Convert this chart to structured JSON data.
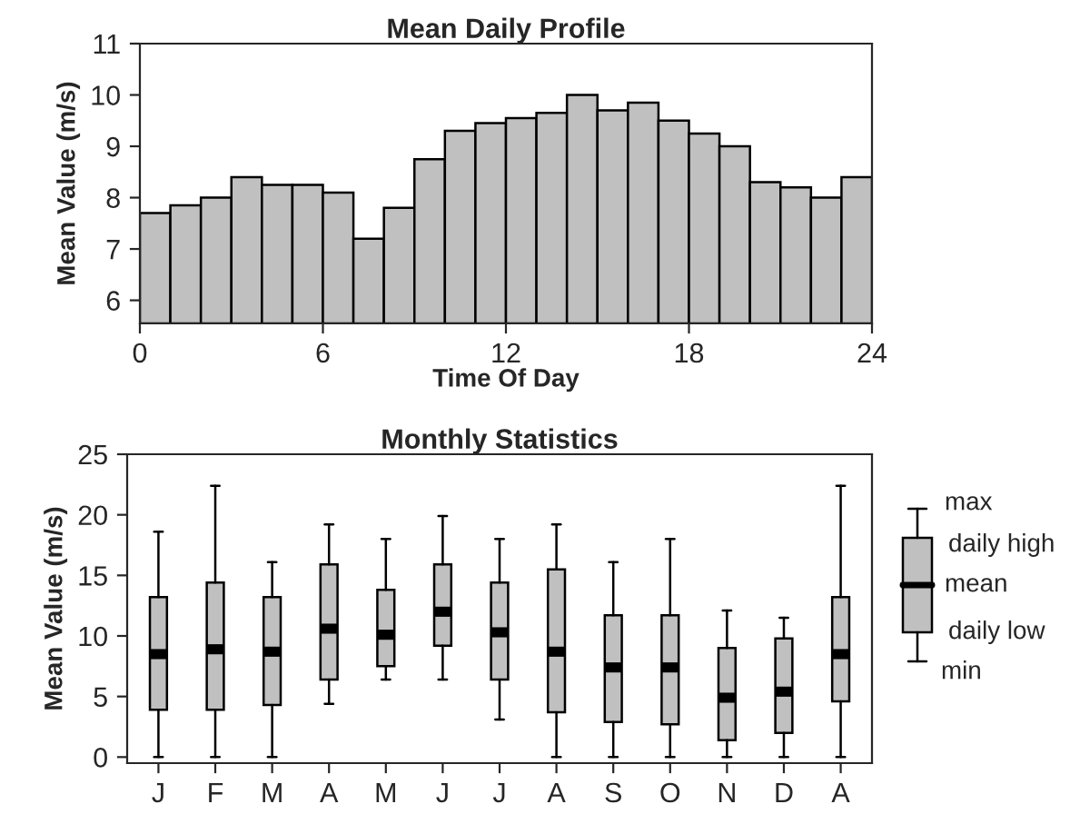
{
  "chart_data": [
    {
      "type": "histogram",
      "title": "Mean Daily Profile",
      "xlabel": "Time Of Day",
      "ylabel": "Mean Value (m/s)",
      "color": "#c0c0c0",
      "bins": [
        0,
        1,
        2,
        3,
        4,
        5,
        6,
        7,
        8,
        9,
        10,
        11,
        12,
        13,
        14,
        15,
        16,
        17,
        18,
        19,
        20,
        21,
        22,
        23,
        24
      ],
      "values": [
        7.7,
        7.85,
        8.0,
        8.4,
        8.25,
        8.25,
        8.1,
        7.2,
        7.8,
        8.75,
        9.3,
        9.45,
        9.55,
        9.65,
        10.0,
        9.7,
        9.85,
        9.5,
        9.25,
        9.0,
        8.3,
        8.2,
        8.0,
        8.4
      ],
      "xlim": [
        0,
        24
      ],
      "xticks": [
        0,
        6,
        12,
        18,
        24
      ],
      "ylim": [
        5.55,
        11
      ],
      "yticks": [
        6,
        7,
        8,
        9,
        10,
        11
      ],
      "grid": false
    },
    {
      "type": "box",
      "title": "Monthly Statistics",
      "ylabel": "Mean Value (m/s)",
      "color": "#c0c0c0",
      "categories": [
        "J",
        "F",
        "M",
        "A",
        "M",
        "J",
        "J",
        "A",
        "S",
        "O",
        "N",
        "D",
        "A"
      ],
      "boxes": [
        {
          "low": 0,
          "q1": 3.9,
          "median": 8.5,
          "q3": 13.2,
          "high": 18.6
        },
        {
          "low": 0,
          "q1": 3.9,
          "median": 8.9,
          "q3": 14.4,
          "high": 22.4
        },
        {
          "low": 0,
          "q1": 4.3,
          "median": 8.7,
          "q3": 13.2,
          "high": 16.1
        },
        {
          "low": 4.4,
          "q1": 6.4,
          "median": 10.6,
          "q3": 15.9,
          "high": 19.2
        },
        {
          "low": 6.4,
          "q1": 7.5,
          "median": 10.1,
          "q3": 13.8,
          "high": 18.0
        },
        {
          "low": 6.4,
          "q1": 9.2,
          "median": 12.0,
          "q3": 15.9,
          "high": 19.9
        },
        {
          "low": 3.1,
          "q1": 6.4,
          "median": 10.3,
          "q3": 14.4,
          "high": 18.0
        },
        {
          "low": 0,
          "q1": 3.7,
          "median": 8.7,
          "q3": 15.5,
          "high": 19.2
        },
        {
          "low": 0,
          "q1": 2.9,
          "median": 7.4,
          "q3": 11.7,
          "high": 16.1
        },
        {
          "low": 0,
          "q1": 2.7,
          "median": 7.4,
          "q3": 11.7,
          "high": 18.0
        },
        {
          "low": 0,
          "q1": 1.4,
          "median": 4.9,
          "q3": 9.0,
          "high": 12.1
        },
        {
          "low": 0,
          "q1": 2.0,
          "median": 5.4,
          "q3": 9.8,
          "high": 11.5
        },
        {
          "low": 0,
          "q1": 4.6,
          "median": 8.5,
          "q3": 13.2,
          "high": 22.4
        }
      ],
      "ylim": [
        -0.5,
        25
      ],
      "yticks": [
        0,
        5,
        10,
        15,
        20,
        25
      ],
      "grid": false,
      "annotations": [
        "max",
        "daily high",
        "mean",
        "daily low",
        "min"
      ]
    }
  ]
}
